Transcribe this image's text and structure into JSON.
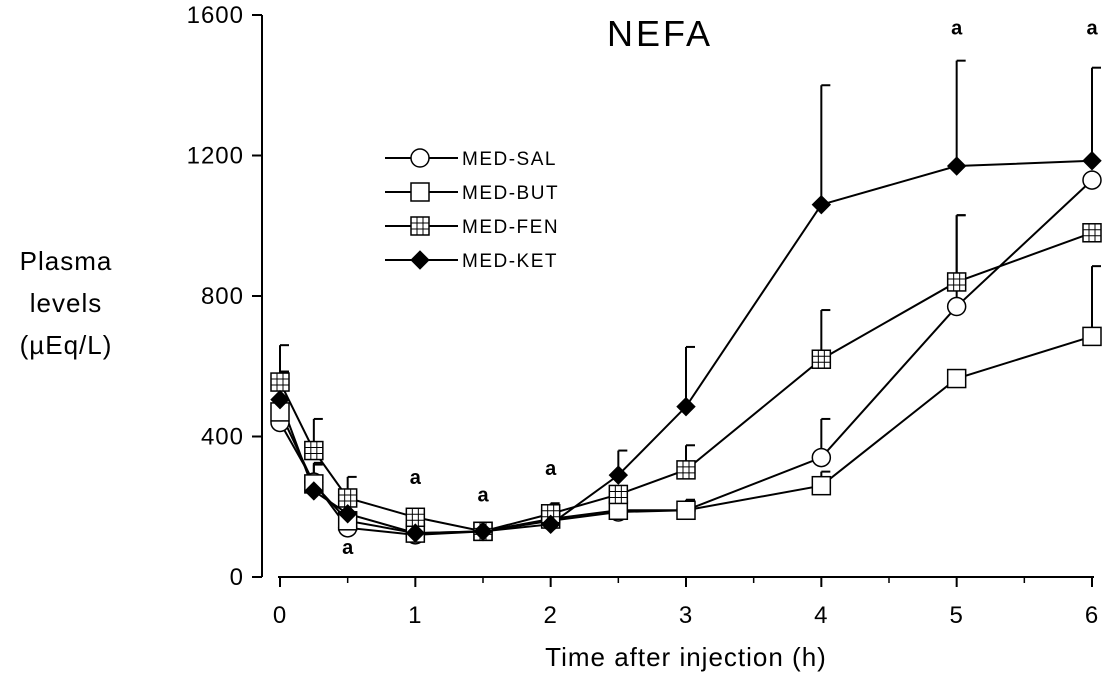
{
  "chart_data": {
    "type": "line",
    "title": "NEFA",
    "xlabel": "Time after injection (h)",
    "ylabel_lines": [
      "Plasma",
      "levels",
      "(µEq/L)"
    ],
    "xlim": [
      0,
      6
    ],
    "ylim": [
      0,
      1600
    ],
    "x_ticks": [
      0,
      1,
      2,
      3,
      4,
      5,
      6
    ],
    "y_ticks": [
      0,
      400,
      800,
      1200,
      1600
    ],
    "x_tick_labels": [
      "0",
      "1",
      "2",
      "3",
      "4",
      "5",
      "6"
    ],
    "y_tick_labels": [
      "0",
      "400",
      "800",
      "1200",
      "1600"
    ],
    "grid": false,
    "legend_position": "upper-left",
    "x": [
      0,
      0.25,
      0.5,
      1,
      1.5,
      2,
      2.5,
      3,
      4,
      5,
      6
    ],
    "series": [
      {
        "name": "MED-SAL",
        "marker": "circle-open",
        "values": [
          440,
          270,
          140,
          120,
          130,
          160,
          185,
          190,
          340,
          770,
          1130
        ],
        "error": [
          0,
          50,
          0,
          0,
          0,
          0,
          0,
          30,
          110,
          260,
          0
        ]
      },
      {
        "name": "MED-BUT",
        "marker": "square-open",
        "values": [
          470,
          265,
          160,
          125,
          130,
          165,
          190,
          190,
          260,
          565,
          685
        ],
        "error": [
          0,
          0,
          0,
          0,
          0,
          0,
          0,
          0,
          40,
          0,
          200
        ]
      },
      {
        "name": "MED-FEN",
        "marker": "square-crossed",
        "values": [
          555,
          360,
          225,
          170,
          130,
          180,
          235,
          305,
          620,
          840,
          980
        ],
        "error": [
          105,
          90,
          60,
          0,
          0,
          30,
          0,
          70,
          140,
          190,
          0
        ]
      },
      {
        "name": "MED-KET",
        "marker": "diamond-filled",
        "values": [
          505,
          245,
          180,
          125,
          130,
          150,
          290,
          485,
          1060,
          1170,
          1185
        ],
        "error": [
          80,
          80,
          0,
          0,
          0,
          0,
          70,
          170,
          340,
          300,
          265
        ]
      }
    ],
    "annotations": [
      {
        "text": "a",
        "x": 0.5,
        "y": 65
      },
      {
        "text": "a",
        "x": 1,
        "y": 265
      },
      {
        "text": "a",
        "x": 1.5,
        "y": 215
      },
      {
        "text": "a",
        "x": 2,
        "y": 290
      },
      {
        "text": "a",
        "x": 5,
        "y": 1545
      },
      {
        "text": "a",
        "x": 6,
        "y": 1545
      }
    ]
  }
}
